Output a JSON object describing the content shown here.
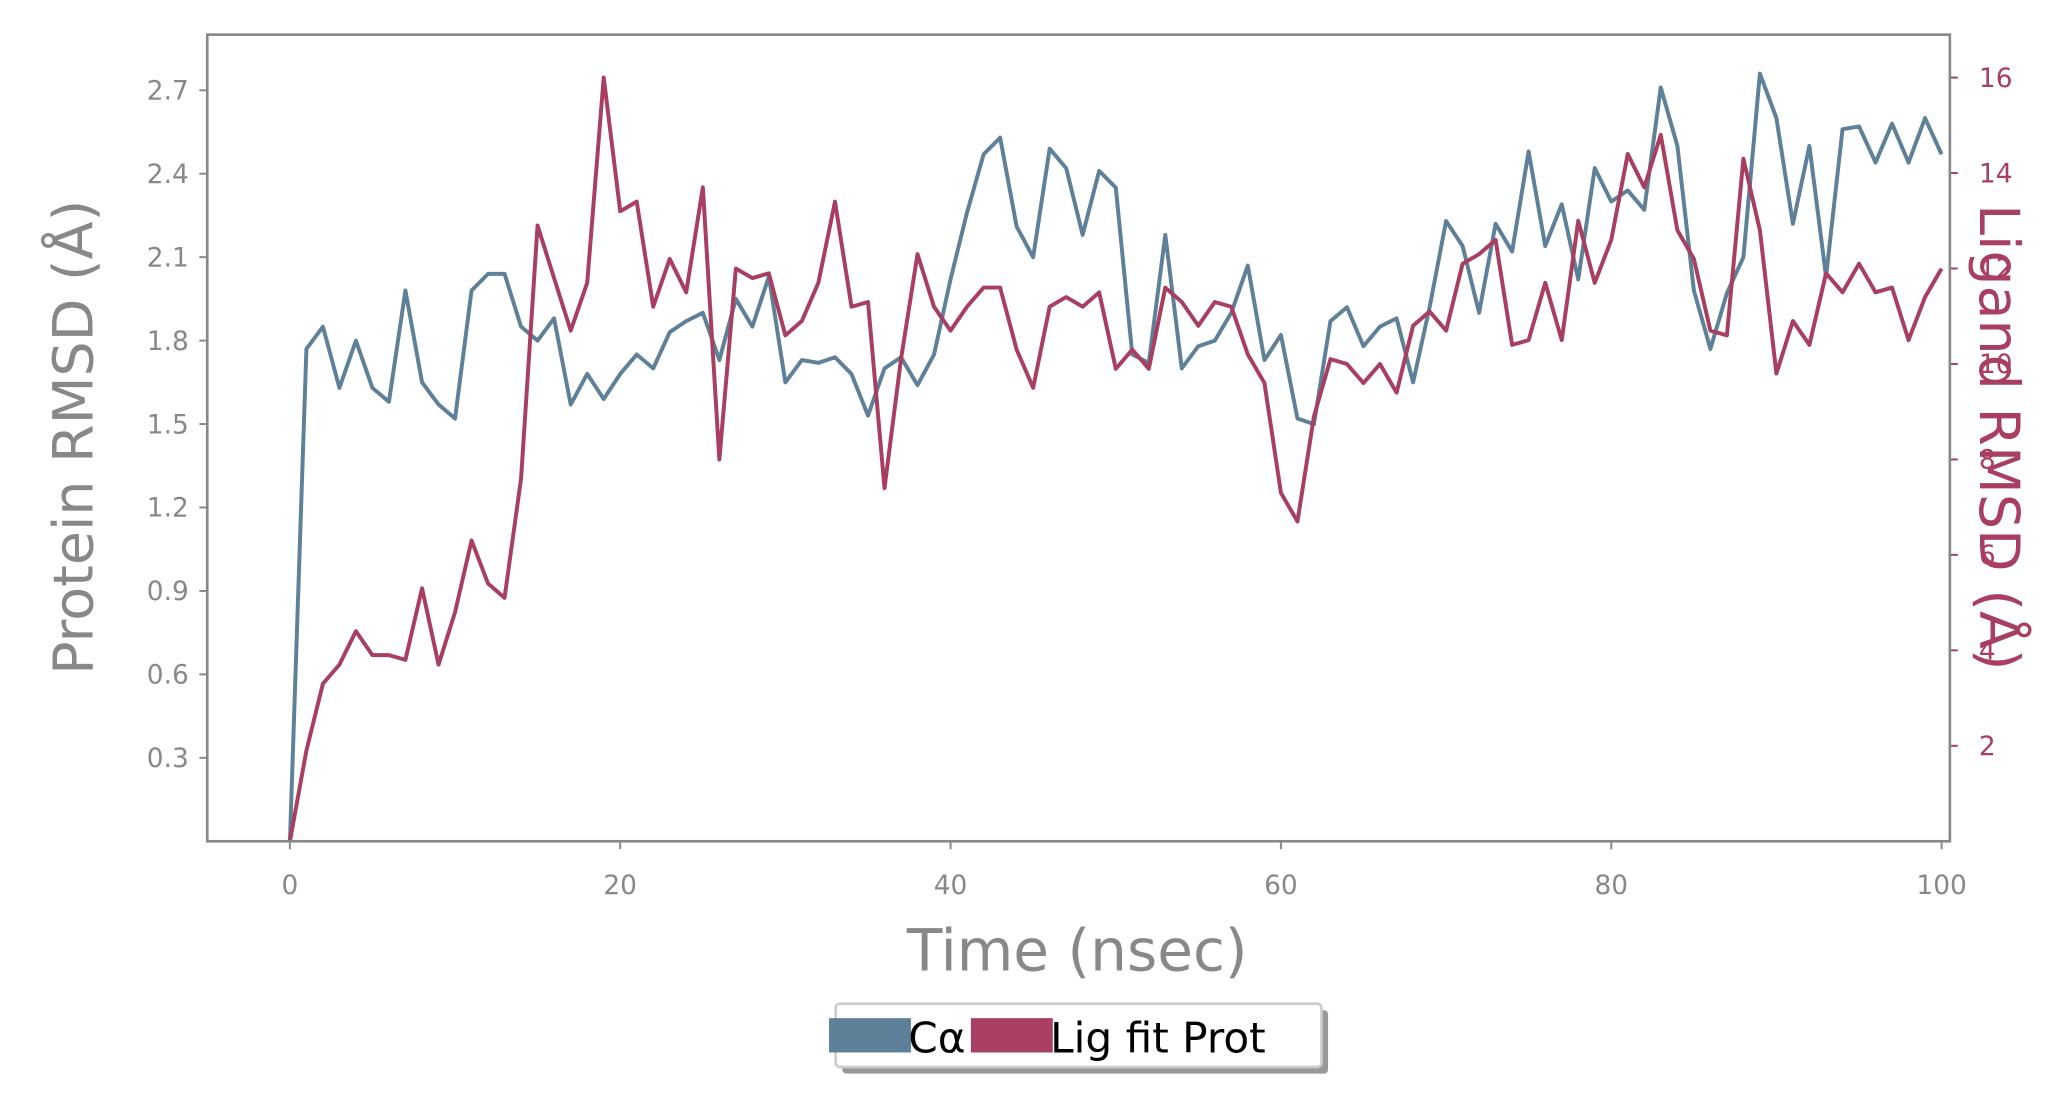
{
  "chart_data": {
    "type": "line",
    "x_label": "Time (nsec)",
    "y_label": "Protein RMSD (Å)",
    "y2_label": "Ligand RMSD (Å)",
    "x": [
      0,
      1,
      2,
      3,
      4,
      5,
      6,
      7,
      8,
      9,
      10,
      11,
      12,
      13,
      14,
      15,
      16,
      17,
      18,
      19,
      20,
      21,
      22,
      23,
      24,
      25,
      26,
      27,
      28,
      29,
      30,
      31,
      32,
      33,
      34,
      35,
      36,
      37,
      38,
      39,
      40,
      41,
      42,
      43,
      44,
      45,
      46,
      47,
      48,
      49,
      50,
      51,
      52,
      53,
      54,
      55,
      56,
      57,
      58,
      59,
      60,
      61,
      62,
      63,
      64,
      65,
      66,
      67,
      68,
      69,
      70,
      71,
      72,
      73,
      74,
      75,
      76,
      77,
      78,
      79,
      80,
      81,
      82,
      83,
      84,
      85,
      86,
      87,
      88,
      89,
      90,
      91,
      92,
      93,
      94,
      95,
      96,
      97,
      98,
      99,
      100
    ],
    "series": [
      {
        "name": "Cα",
        "color": "#5e8099",
        "axis": "y",
        "values": [
          0,
          1.77,
          1.85,
          1.63,
          1.8,
          1.63,
          1.58,
          1.98,
          1.65,
          1.57,
          1.52,
          1.98,
          2.04,
          2.04,
          1.85,
          1.8,
          1.88,
          1.57,
          1.68,
          1.59,
          1.68,
          1.75,
          1.7,
          1.83,
          1.87,
          1.9,
          1.73,
          1.95,
          1.85,
          2.03,
          1.65,
          1.73,
          1.72,
          1.74,
          1.68,
          1.53,
          1.7,
          1.74,
          1.64,
          1.75,
          2.02,
          2.26,
          2.47,
          2.53,
          2.21,
          2.1,
          2.49,
          2.42,
          2.18,
          2.41,
          2.35,
          1.75,
          1.72,
          2.18,
          1.7,
          1.78,
          1.8,
          1.9,
          2.07,
          1.73,
          1.82,
          1.52,
          1.5,
          1.87,
          1.92,
          1.78,
          1.85,
          1.88,
          1.65,
          1.92,
          2.23,
          2.14,
          1.9,
          2.22,
          2.12,
          2.48,
          2.14,
          2.29,
          2.02,
          2.42,
          2.3,
          2.34,
          2.27,
          2.71,
          2.5,
          1.98,
          1.77,
          1.97,
          2.1,
          2.76,
          2.6,
          2.22,
          2.5,
          2.03,
          2.56,
          2.57,
          2.44,
          2.58,
          2.44,
          2.6,
          2.47
        ]
      },
      {
        "name": "Lig fit Prot",
        "color": "#a83f60",
        "axis": "y2",
        "values": [
          0,
          1.9,
          3.3,
          3.7,
          4.4,
          3.9,
          3.9,
          3.8,
          5.3,
          3.7,
          4.8,
          6.3,
          5.4,
          5.1,
          7.6,
          12.9,
          11.8,
          10.7,
          11.7,
          16.0,
          13.2,
          13.4,
          11.2,
          12.2,
          11.5,
          13.7,
          8.0,
          12.0,
          11.8,
          11.9,
          10.6,
          10.9,
          11.7,
          13.4,
          11.2,
          11.3,
          7.4,
          10.1,
          12.3,
          11.2,
          10.7,
          11.2,
          11.6,
          11.6,
          10.3,
          9.5,
          11.2,
          11.4,
          11.2,
          11.5,
          9.9,
          10.3,
          9.9,
          11.6,
          11.3,
          10.8,
          11.3,
          11.2,
          10.2,
          9.6,
          7.3,
          6.7,
          8.9,
          10.1,
          10.0,
          9.6,
          10.0,
          9.4,
          10.8,
          11.1,
          10.7,
          12.1,
          12.3,
          12.6,
          10.4,
          10.5,
          11.7,
          10.5,
          13.0,
          11.7,
          12.6,
          14.4,
          13.7,
          14.8,
          12.8,
          12.2,
          10.7,
          10.6,
          14.3,
          12.8,
          9.8,
          10.9,
          10.4,
          11.9,
          11.5,
          12.1,
          11.5,
          11.6,
          10.5,
          11.4,
          12.0
        ]
      }
    ],
    "xlim": [
      -5,
      100.5
    ],
    "xticks": [
      0,
      20,
      40,
      60,
      80,
      100
    ],
    "ylim": [
      0,
      2.9
    ],
    "yticks": [
      0.3,
      0.6,
      0.9,
      1.2,
      1.5,
      1.8,
      2.1,
      2.4,
      2.7
    ],
    "y2lim": [
      0,
      16.9
    ],
    "y2ticks": [
      2,
      4,
      6,
      8,
      10,
      12,
      14,
      16
    ],
    "legend": "bottom"
  }
}
